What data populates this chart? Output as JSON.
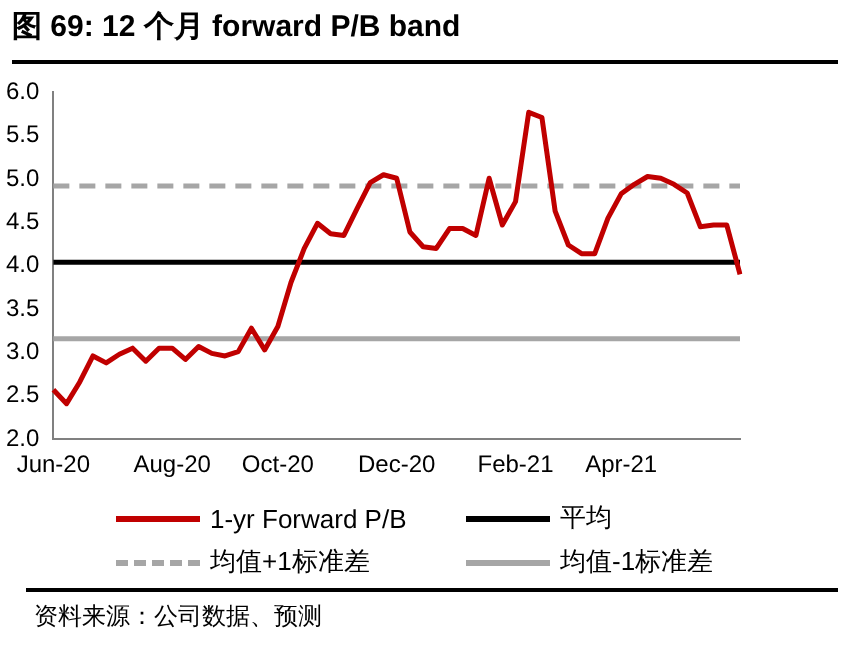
{
  "chart_data": {
    "type": "line",
    "title": "图 69: 12 个月 forward P/B band",
    "categories": [
      "Jun-20",
      null,
      null,
      null,
      null,
      null,
      null,
      null,
      null,
      "Aug-20",
      null,
      null,
      null,
      null,
      null,
      null,
      null,
      "Oct-20",
      null,
      null,
      null,
      null,
      null,
      null,
      null,
      null,
      "Dec-20",
      null,
      null,
      null,
      null,
      null,
      null,
      null,
      null,
      "Feb-21",
      null,
      null,
      null,
      null,
      null,
      null,
      null,
      "Apr-21",
      null,
      null,
      null,
      null,
      null,
      null,
      null,
      null,
      null
    ],
    "series": [
      {
        "name": "1-yr Forward P/B",
        "color": "#c00000",
        "values": [
          2.57,
          2.41,
          2.66,
          2.96,
          2.88,
          2.98,
          3.05,
          2.9,
          3.05,
          3.05,
          2.92,
          3.07,
          2.99,
          2.96,
          3.01,
          3.28,
          3.03,
          3.3,
          3.81,
          4.2,
          4.49,
          4.37,
          4.35,
          4.66,
          4.96,
          5.05,
          5.01,
          4.39,
          4.22,
          4.2,
          4.43,
          4.43,
          4.35,
          5.01,
          4.47,
          4.74,
          5.77,
          5.71,
          4.63,
          4.24,
          4.14,
          4.14,
          4.55,
          4.83,
          4.94,
          5.03,
          5.01,
          4.94,
          4.84,
          4.45,
          4.47,
          4.47,
          3.9
        ]
      }
    ],
    "ref_lines": [
      {
        "axis": "y",
        "value": 4.04,
        "label": "平均",
        "color": "#000000",
        "line_style": "solid"
      },
      {
        "axis": "y",
        "value": 4.92,
        "label": "均值+1标准差",
        "color": "#a6a6a6",
        "line_style": "dashed"
      },
      {
        "axis": "y",
        "value": 3.16,
        "label": "均值-1标准差",
        "color": "#a6a6a6",
        "line_style": "solid"
      }
    ],
    "ylim": [
      2,
      6
    ],
    "yticks": [
      {
        "value": 2,
        "label": "2.0"
      },
      {
        "value": 2.5,
        "label": "2.5"
      },
      {
        "value": 3,
        "label": "3.0"
      },
      {
        "value": 3.5,
        "label": "3.5"
      },
      {
        "value": 4,
        "label": "4.0"
      },
      {
        "value": 4.5,
        "label": "4.5"
      },
      {
        "value": 5,
        "label": "5.0"
      },
      {
        "value": 5.5,
        "label": "5.5"
      },
      {
        "value": 6,
        "label": "6.0"
      }
    ],
    "grid": false,
    "legend": "bottom",
    "marker": "none",
    "line_style": "solid",
    "annotations": [
      "资料来源：公司数据、预测"
    ]
  }
}
